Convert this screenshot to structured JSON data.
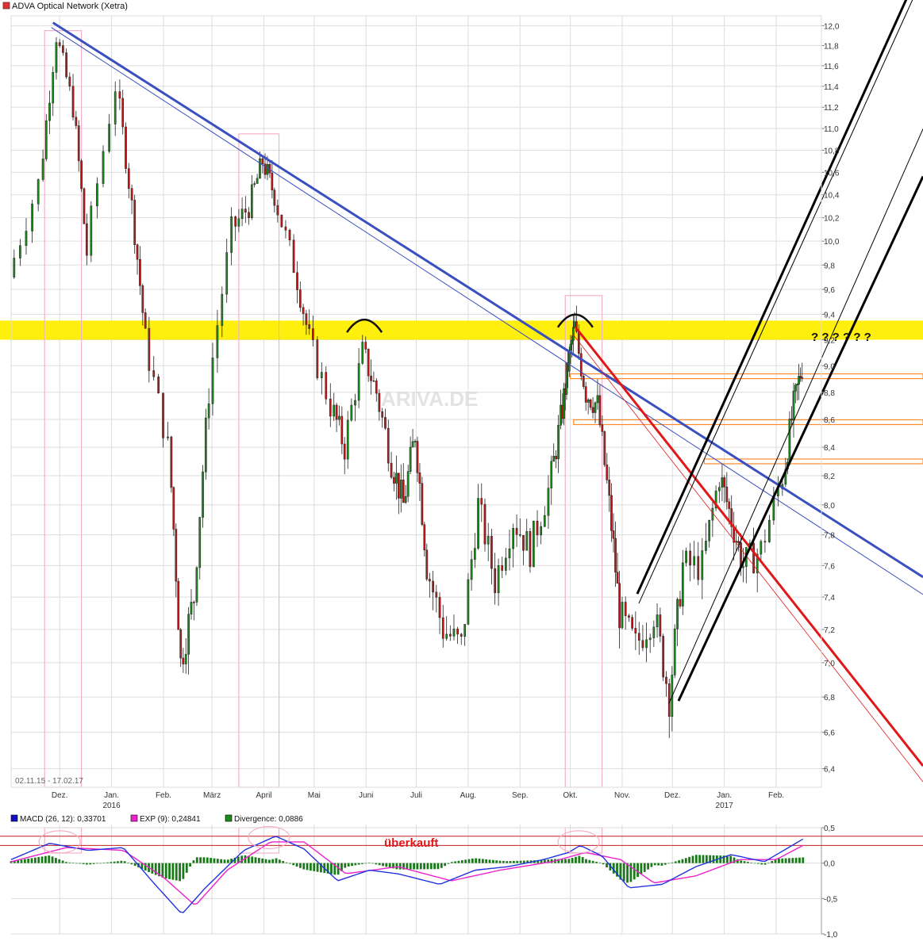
{
  "title": "ADVA Optical Network (Xetra)",
  "title_marker_color": "#e03030",
  "date_range": "02.11.15 - 17.02.17",
  "question_marks": "? ? ? ? ? ?",
  "overbought_label": "überkauft",
  "watermark": "ARIVA.DE",
  "colors": {
    "up_candle": "#1a8a1a",
    "down_candle": "#c01818",
    "downtrend": "#3a4fc0",
    "red_trend": "#e01818",
    "channel": "#000000",
    "resistance_band": "#ffee00",
    "support_box": "#ff8a2a",
    "highlight_box": "#f4b0c8",
    "macd": "#2233dd",
    "signal": "#ee22cc",
    "divergence": "#1a7a1a",
    "grid": "#dddddd"
  },
  "macd_legend": [
    {
      "label": "MACD (26, 12): 0,33701",
      "color": "#1010c0"
    },
    {
      "label": "EXP (9): 0,24841",
      "color": "#ee22cc"
    },
    {
      "label": "Divergence: 0,0886",
      "color": "#1a8a1a"
    }
  ],
  "chart_data": [
    {
      "type": "candlestick",
      "title": "ADVA Optical Network (Xetra)",
      "x_months": [
        "Dez.",
        "Jan.",
        "Feb.",
        "März",
        "April",
        "Mai",
        "Juni",
        "Juli",
        "Aug.",
        "Sep.",
        "Okt.",
        "Nov.",
        "Dez.",
        "Jan.",
        "Feb."
      ],
      "year_labels": [
        {
          "after_month": "Jan.",
          "year": "2016",
          "index": 1
        },
        {
          "after_month": "Jan.",
          "year": "2017",
          "index": 13
        }
      ],
      "y_ticks": [
        "6,4",
        "6,6",
        "6,8",
        "7,0",
        "7,2",
        "7,4",
        "7,6",
        "7,8",
        "8,0",
        "8,2",
        "8,4",
        "8,6",
        "8,8",
        "9,0",
        "9,2",
        "9,4",
        "9,6",
        "9,8",
        "10,0",
        "10,2",
        "10,4",
        "10,6",
        "10,8",
        "11,0",
        "11,2",
        "11,4",
        "11,6",
        "11,8",
        "12,0"
      ],
      "ylim": [
        6.3,
        12.1
      ],
      "scale": "log",
      "price_path": [
        [
          "2015-11-02",
          9.7
        ],
        [
          "2015-11-20",
          10.5
        ],
        [
          "2015-11-30",
          11.9
        ],
        [
          "2015-12-10",
          11.2
        ],
        [
          "2015-12-18",
          9.9
        ],
        [
          "2016-01-05",
          11.4
        ],
        [
          "2016-01-14",
          10.3
        ],
        [
          "2016-01-22",
          9.2
        ],
        [
          "2016-02-05",
          8.4
        ],
        [
          "2016-02-12",
          7.0
        ],
        [
          "2016-02-20",
          7.4
        ],
        [
          "2016-02-29",
          8.8
        ],
        [
          "2016-03-14",
          10.1
        ],
        [
          "2016-03-24",
          10.3
        ],
        [
          "2016-04-01",
          10.7
        ],
        [
          "2016-04-08",
          10.4
        ],
        [
          "2016-04-20",
          9.8
        ],
        [
          "2016-04-29",
          9.2
        ],
        [
          "2016-05-12",
          8.7
        ],
        [
          "2016-05-20",
          8.4
        ],
        [
          "2016-05-31",
          9.1
        ],
        [
          "2016-06-08",
          8.8
        ],
        [
          "2016-06-17",
          8.3
        ],
        [
          "2016-06-24",
          8.0
        ],
        [
          "2016-07-01",
          8.5
        ],
        [
          "2016-07-08",
          7.6
        ],
        [
          "2016-07-18",
          7.2
        ],
        [
          "2016-07-29",
          7.1
        ],
        [
          "2016-08-08",
          8.0
        ],
        [
          "2016-08-18",
          7.5
        ],
        [
          "2016-08-29",
          7.9
        ],
        [
          "2016-09-08",
          7.7
        ],
        [
          "2016-09-19",
          8.1
        ],
        [
          "2016-09-26",
          8.6
        ],
        [
          "2016-09-30",
          9.0
        ],
        [
          "2016-10-04",
          9.3
        ],
        [
          "2016-10-11",
          8.8
        ],
        [
          "2016-10-18",
          8.7
        ],
        [
          "2016-10-25",
          8.0
        ],
        [
          "2016-10-31",
          7.3
        ],
        [
          "2016-11-10",
          7.1
        ],
        [
          "2016-11-21",
          7.3
        ],
        [
          "2016-11-30",
          6.8
        ],
        [
          "2016-12-08",
          7.6
        ],
        [
          "2016-12-20",
          7.6
        ],
        [
          "2016-12-30",
          8.2
        ],
        [
          "2017-01-06",
          7.9
        ],
        [
          "2017-01-13",
          7.6
        ],
        [
          "2017-01-24",
          7.7
        ],
        [
          "2017-02-06",
          8.2
        ],
        [
          "2017-02-12",
          8.7
        ],
        [
          "2017-02-17",
          9.0
        ]
      ],
      "volatility": 0.16,
      "bars_per_segment": 5,
      "annotations": [
        {
          "kind": "horizontal_band",
          "from": 9.2,
          "to": 9.35,
          "label": "? ? ? ? ? ?"
        },
        {
          "kind": "trendline",
          "name": "blue downtrend",
          "from": [
            "2015-11-27",
            12.03
          ],
          "to": [
            "2017-02-28",
            7.95
          ]
        },
        {
          "kind": "trendline",
          "name": "red downtrend",
          "from": [
            "2016-10-04",
            9.3
          ],
          "to": [
            "2017-02-28",
            7.15
          ]
        },
        {
          "kind": "channel",
          "name": "black uptrend channel",
          "from": [
            "2016-11-10",
            7.42
          ],
          "to": [
            "2017-02-28",
            10.47
          ]
        },
        {
          "kind": "support_lines",
          "levels": [
            8.92,
            8.58,
            8.3
          ]
        }
      ]
    },
    {
      "type": "line",
      "title": "MACD",
      "series": [
        {
          "name": "MACD (26, 12)",
          "last": 0.33701
        },
        {
          "name": "EXP (9)",
          "last": 0.24841
        },
        {
          "name": "Divergence",
          "last": 0.0886
        }
      ],
      "y_ticks": [
        "-1,0",
        "-0,5",
        "0,0",
        "0,5"
      ],
      "ylim": [
        -1.0,
        0.5
      ],
      "overbought_level": 0.3,
      "overbought_label": "überkauft",
      "macd_path": [
        [
          "2015-11-02",
          0.05
        ],
        [
          "2015-11-25",
          0.28
        ],
        [
          "2015-12-18",
          0.18
        ],
        [
          "2016-01-08",
          0.22
        ],
        [
          "2016-01-25",
          -0.25
        ],
        [
          "2016-02-12",
          -0.72
        ],
        [
          "2016-02-26",
          -0.35
        ],
        [
          "2016-03-20",
          0.18
        ],
        [
          "2016-04-08",
          0.38
        ],
        [
          "2016-04-25",
          0.2
        ],
        [
          "2016-05-15",
          -0.25
        ],
        [
          "2016-06-03",
          -0.1
        ],
        [
          "2016-06-20",
          -0.15
        ],
        [
          "2016-07-15",
          -0.3
        ],
        [
          "2016-08-05",
          -0.1
        ],
        [
          "2016-08-25",
          -0.05
        ],
        [
          "2016-09-15",
          0.05
        ],
        [
          "2016-09-30",
          0.15
        ],
        [
          "2016-10-07",
          0.25
        ],
        [
          "2016-10-20",
          0.1
        ],
        [
          "2016-11-05",
          -0.35
        ],
        [
          "2016-11-25",
          -0.3
        ],
        [
          "2016-12-15",
          -0.05
        ],
        [
          "2017-01-05",
          0.12
        ],
        [
          "2017-01-25",
          0.02
        ],
        [
          "2017-02-17",
          0.34
        ]
      ],
      "signal_path": [
        [
          "2015-11-02",
          0.02
        ],
        [
          "2015-12-05",
          0.22
        ],
        [
          "2016-01-08",
          0.18
        ],
        [
          "2016-02-01",
          -0.2
        ],
        [
          "2016-02-20",
          -0.6
        ],
        [
          "2016-03-10",
          -0.1
        ],
        [
          "2016-04-05",
          0.3
        ],
        [
          "2016-04-25",
          0.3
        ],
        [
          "2016-05-20",
          -0.15
        ],
        [
          "2016-06-20",
          -0.05
        ],
        [
          "2016-07-22",
          -0.25
        ],
        [
          "2016-08-20",
          -0.1
        ],
        [
          "2016-09-20",
          0.02
        ],
        [
          "2016-10-10",
          0.15
        ],
        [
          "2016-10-31",
          0.05
        ],
        [
          "2016-11-20",
          -0.28
        ],
        [
          "2016-12-15",
          -0.18
        ],
        [
          "2017-01-10",
          0.05
        ],
        [
          "2017-02-01",
          0.05
        ],
        [
          "2017-02-17",
          0.25
        ]
      ]
    }
  ]
}
